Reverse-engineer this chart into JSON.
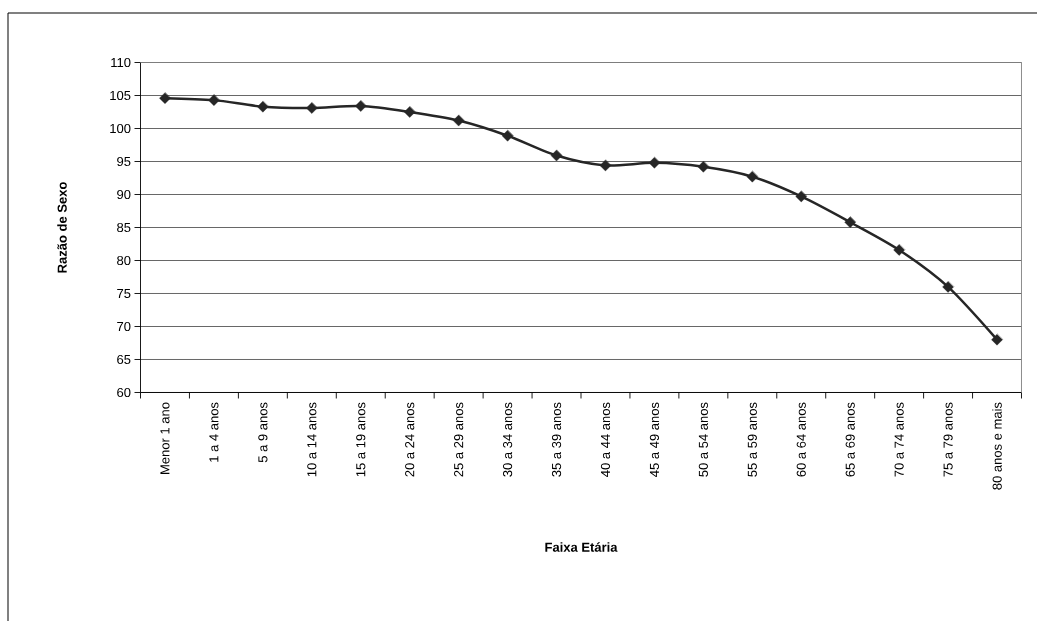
{
  "chart_data": {
    "type": "line",
    "xlabel": "Faixa Etária",
    "ylabel": "Razão de Sexo",
    "categories": [
      "Menor 1 ano",
      "1 a 4 anos",
      "5 a 9 anos",
      "10 a 14 anos",
      "15 a 19 anos",
      "20 a 24 anos",
      "25 a 29 anos",
      "30 a 34 anos",
      "35 a 39 anos",
      "40 a 44 anos",
      "45 a 49 anos",
      "50 a 54 anos",
      "55 a 59 anos",
      "60 a 64 anos",
      "65 a 69 anos",
      "70 a 74 anos",
      "75 a 79 anos",
      "80 anos e mais"
    ],
    "series": [
      {
        "color": "#262626",
        "values": [
          104.6,
          104.3,
          103.3,
          103.1,
          103.4,
          102.5,
          101.2,
          98.9,
          95.9,
          94.4,
          94.8,
          94.2,
          92.7,
          89.7,
          85.8,
          81.6,
          76.0,
          68.0
        ]
      }
    ],
    "ylim": [
      60,
      110
    ],
    "yticks": [
      60,
      65,
      70,
      75,
      80,
      85,
      90,
      95,
      100,
      105,
      110
    ],
    "grid": "y",
    "marker": "diamond",
    "line_style": "solid"
  }
}
